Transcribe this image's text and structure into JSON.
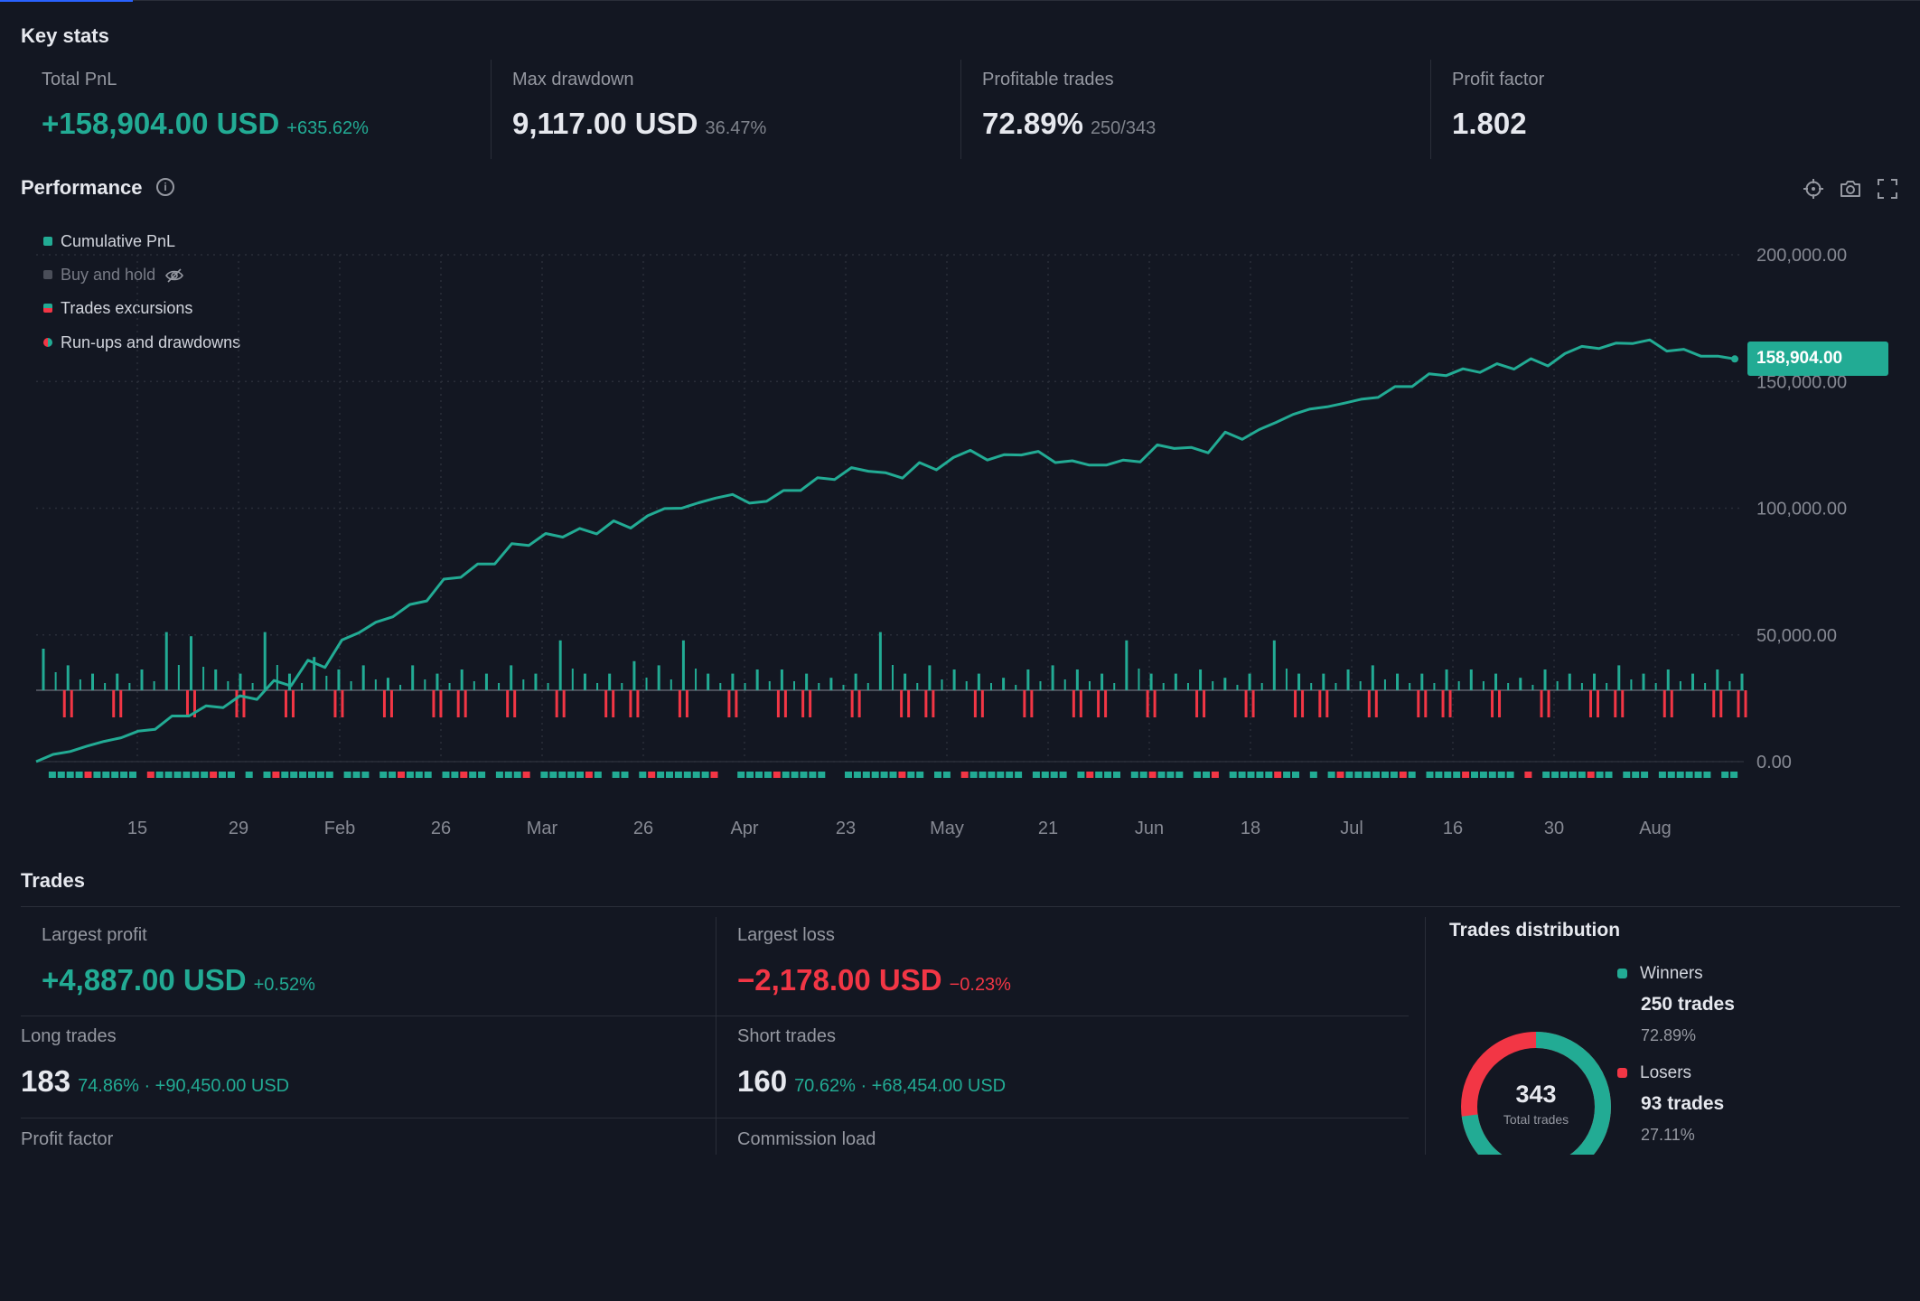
{
  "key_stats": {
    "title": "Key stats",
    "total_pnl": {
      "label": "Total PnL",
      "value": "+158,904.00 USD",
      "sub": "+635.62%"
    },
    "max_drawdown": {
      "label": "Max drawdown",
      "value": "9,117.00 USD",
      "sub": "36.47%"
    },
    "profitable_trades": {
      "label": "Profitable trades",
      "value": "72.89%",
      "sub": "250/343"
    },
    "profit_factor": {
      "label": "Profit factor",
      "value": "1.802"
    }
  },
  "performance": {
    "title": "Performance",
    "info_icon": "info-icon",
    "tools": [
      "crosshair-icon",
      "camera-icon",
      "fullscreen-icon"
    ],
    "legend": [
      {
        "label": "Cumulative PnL",
        "color": "#22ab94",
        "visible": true
      },
      {
        "label": "Buy and hold",
        "color": "#4a4e59",
        "visible": false
      },
      {
        "label": "Trades excursions",
        "color": "#f23645",
        "visible": true
      },
      {
        "label": "Run-ups and drawdowns",
        "color": "#22ab94",
        "visible": true
      }
    ],
    "last_value_label": "158,904.00"
  },
  "chart_data": {
    "type": "line",
    "x_tick_labels": [
      "15",
      "29",
      "Feb",
      "26",
      "Mar",
      "26",
      "Apr",
      "23",
      "May",
      "21",
      "Jun",
      "18",
      "Jul",
      "16",
      "30",
      "Aug"
    ],
    "y_tick_labels": [
      "200,000.00",
      "150,000.00",
      "100,000.00",
      "50,000.00",
      "0.00"
    ],
    "ylim": [
      0,
      200000
    ],
    "grid": true,
    "legend_position": "top-left",
    "series": [
      {
        "name": "Cumulative PnL",
        "color": "#22ab94",
        "x_index": [
          0,
          2,
          4,
          6,
          8,
          10,
          12,
          14,
          16,
          18,
          20,
          22,
          24,
          26,
          28,
          30,
          32,
          34,
          36,
          38,
          40,
          42,
          44,
          46,
          48,
          50,
          52,
          54,
          56,
          58,
          60,
          62,
          64,
          66,
          68,
          70,
          72,
          74,
          76,
          78,
          80,
          82,
          84,
          86,
          88,
          90,
          92,
          94,
          96,
          98,
          100
        ],
        "values": [
          0,
          4000,
          8000,
          12000,
          18000,
          22000,
          26000,
          32000,
          40000,
          48000,
          55000,
          62000,
          72000,
          78000,
          86000,
          90000,
          92000,
          95000,
          97000,
          100000,
          104000,
          102000,
          107000,
          112000,
          116000,
          114000,
          118000,
          120000,
          119000,
          121000,
          118000,
          117000,
          119000,
          125000,
          124000,
          130000,
          131000,
          137000,
          140000,
          143000,
          148000,
          153000,
          155000,
          157000,
          159000,
          161000,
          163000,
          165000,
          162000,
          160000,
          158904
        ]
      }
    ],
    "trade_excursions": {
      "runup_color": "#22ab94",
      "drawdown_color": "#f23645",
      "runups": [
        10,
        6,
        4,
        4,
        5,
        14,
        13,
        5,
        4,
        14,
        4,
        8,
        5,
        6,
        3,
        6,
        4,
        5,
        4,
        6,
        4,
        12,
        4,
        4,
        7,
        6,
        12,
        4,
        4,
        5,
        5,
        4,
        3,
        4,
        14,
        4,
        6,
        5,
        4,
        3,
        5,
        6,
        5,
        4,
        12,
        4,
        4,
        5,
        3,
        4,
        12,
        4,
        4,
        5,
        6,
        4,
        4,
        5,
        5,
        4,
        3,
        5,
        4,
        4,
        6,
        4,
        5,
        4,
        5,
        4
      ],
      "drawdowns": [
        0,
        5,
        0,
        5,
        0,
        0,
        5,
        0,
        5,
        0,
        5,
        0,
        5,
        0,
        5,
        0,
        5,
        5,
        0,
        5,
        0,
        5,
        0,
        5,
        5,
        0,
        5,
        0,
        5,
        0,
        5,
        5,
        0,
        5,
        0,
        5,
        5,
        0,
        5,
        0,
        5,
        0,
        5,
        5,
        0,
        5,
        0,
        5,
        0,
        5,
        0,
        5,
        5,
        0,
        5,
        0,
        5,
        5,
        0,
        5,
        0,
        5,
        0,
        5,
        5,
        0,
        5,
        0,
        5,
        5
      ]
    }
  },
  "trades": {
    "title": "Trades",
    "largest_profit": {
      "label": "Largest profit",
      "value": "+4,887.00 USD",
      "sub": "+0.52%"
    },
    "largest_loss": {
      "label": "Largest loss",
      "value": "−2,178.00 USD",
      "sub": "−0.23%"
    },
    "long_trades": {
      "label": "Long trades",
      "value": "183",
      "sub": "74.86% · +90,450.00 USD"
    },
    "short_trades": {
      "label": "Short trades",
      "value": "160",
      "sub": "70.62% · +68,454.00 USD"
    },
    "profit_factor": {
      "label": "Profit factor"
    },
    "commission_load": {
      "label": "Commission load"
    }
  },
  "distribution": {
    "title": "Trades distribution",
    "total": "343",
    "total_label": "Total trades",
    "winners": {
      "name": "Winners",
      "count": "250 trades",
      "pct": "72.89%",
      "fraction": 0.7289,
      "color": "#22ab94"
    },
    "losers": {
      "name": "Losers",
      "count": "93 trades",
      "pct": "27.11%",
      "fraction": 0.2711,
      "color": "#f23645"
    }
  }
}
